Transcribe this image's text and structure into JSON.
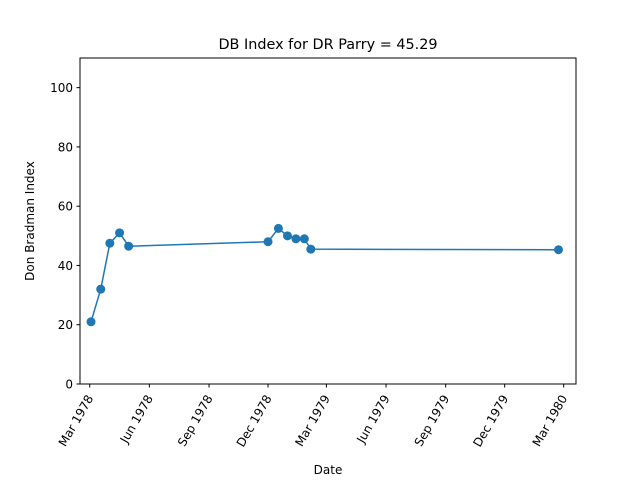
{
  "chart_data": {
    "type": "line",
    "title": "DB Index for DR Parry = 45.29",
    "xlabel": "Date",
    "ylabel": "Don Bradman Index",
    "ylim": [
      0,
      110
    ],
    "xlim": [
      "1978-02-14",
      "1980-03-20"
    ],
    "grid": false,
    "marker": "circle",
    "color": "#1f77b4",
    "yticks": [
      0,
      20,
      40,
      60,
      80,
      100
    ],
    "xticks": [
      {
        "date": "1978-03-01",
        "label": "Mar 1978"
      },
      {
        "date": "1978-06-01",
        "label": "Jun 1978"
      },
      {
        "date": "1978-09-01",
        "label": "Sep 1978"
      },
      {
        "date": "1978-12-01",
        "label": "Dec 1978"
      },
      {
        "date": "1979-03-01",
        "label": "Mar 1979"
      },
      {
        "date": "1979-06-01",
        "label": "Jun 1979"
      },
      {
        "date": "1979-09-01",
        "label": "Sep 1979"
      },
      {
        "date": "1979-12-01",
        "label": "Dec 1979"
      },
      {
        "date": "1980-03-01",
        "label": "Mar 1980"
      }
    ],
    "series": [
      {
        "x": [
          "1978-03-03",
          "1978-03-18",
          "1978-04-01",
          "1978-04-16",
          "1978-04-30",
          "1978-12-01",
          "1978-12-17",
          "1978-12-31",
          "1979-01-13",
          "1979-01-26",
          "1979-02-05",
          "1980-02-22"
        ],
        "y": [
          21,
          32,
          47.5,
          51,
          46.5,
          48,
          52.5,
          50,
          49,
          49,
          45.5,
          45.3
        ]
      }
    ]
  }
}
